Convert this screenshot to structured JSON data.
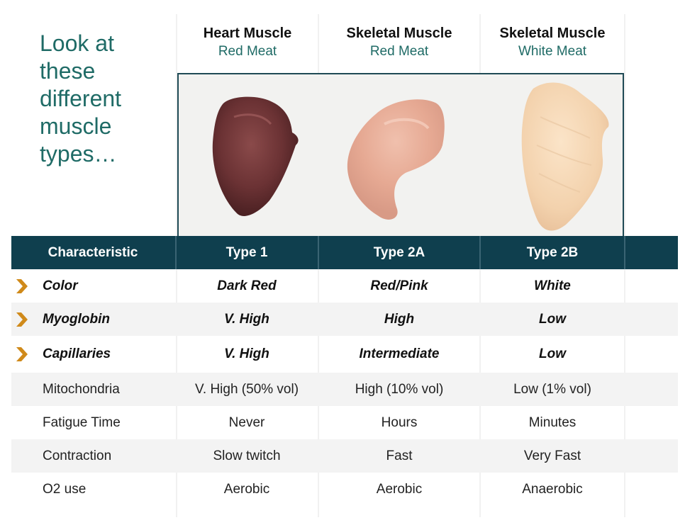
{
  "intro": "Look at these different muscle types…",
  "columns": [
    {
      "title": "Heart Muscle",
      "subtitle": "Red Meat"
    },
    {
      "title": "Skeletal Muscle",
      "subtitle": "Red Meat"
    },
    {
      "title": "Skeletal Muscle",
      "subtitle": "White Meat"
    }
  ],
  "table": {
    "headers": [
      "Characteristic",
      "Type 1",
      "Type 2A",
      "Type 2B"
    ],
    "rows": [
      {
        "label": "Color",
        "values": [
          "Dark Red",
          "Red/Pink",
          "White"
        ]
      },
      {
        "label": "Myoglobin",
        "values": [
          "V. High",
          "High",
          "Low"
        ]
      },
      {
        "label": "Capillaries",
        "values": [
          "V. High",
          "Intermediate",
          "Low"
        ]
      },
      {
        "label": "Mitochondria",
        "values": [
          "V. High (50% vol)",
          "High (10% vol)",
          "Low (1% vol)"
        ]
      },
      {
        "label": "Fatigue Time",
        "values": [
          "Never",
          "Hours",
          "Minutes"
        ]
      },
      {
        "label": "Contraction",
        "values": [
          "Slow twitch",
          "Fast",
          "Very Fast"
        ]
      },
      {
        "label": "O2 use",
        "values": [
          "Aerobic",
          "Aerobic",
          "Anaerobic"
        ]
      }
    ]
  },
  "colors": {
    "teal_text": "#1f6b66",
    "header_bg": "#0f3f4e",
    "chevron": "#d08a1a"
  },
  "icons": {
    "row_marker": "chevron-right-icon"
  }
}
